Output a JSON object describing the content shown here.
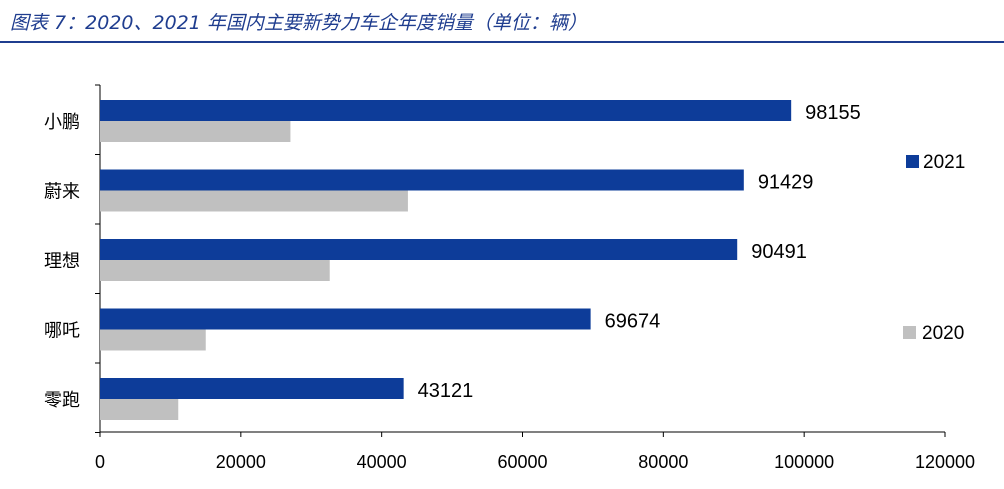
{
  "header": {
    "title": "图表 7：2020、2021 年国内主要新势力车企年度销量（单位：辆）"
  },
  "colors": {
    "header": "#1f3d8f",
    "series_2021": "#0d3c99",
    "series_2020": "#c0c0c0",
    "axis": "#000000"
  },
  "chart_data": {
    "type": "bar",
    "orientation": "horizontal",
    "categories": [
      "小鹏",
      "蔚来",
      "理想",
      "哪吒",
      "零跑"
    ],
    "series": [
      {
        "name": "2021",
        "values": [
          98155,
          91429,
          90491,
          69674,
          43121
        ]
      },
      {
        "name": "2020",
        "values": [
          27041,
          43728,
          32624,
          15016,
          11113
        ]
      }
    ],
    "data_labels_series": "2021",
    "xlim": [
      0,
      120000
    ],
    "xticks": [
      0,
      20000,
      40000,
      60000,
      80000,
      100000,
      120000
    ],
    "legend": "right",
    "grid": false
  }
}
